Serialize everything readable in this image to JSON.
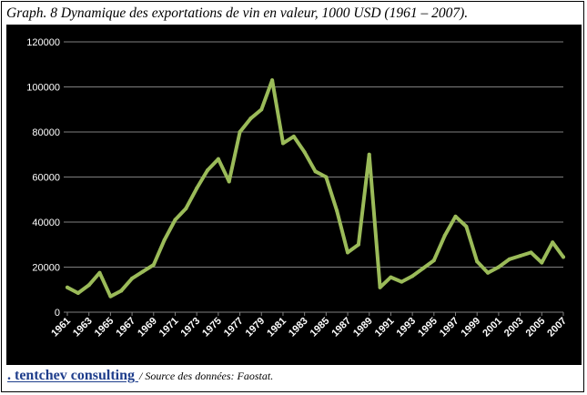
{
  "title": "Graph. 8 Dynamique des exportations de vin en valeur, 1000 USD (1961 – 2007).",
  "footer": {
    "brand": ". tentchev consulting  ",
    "source": "/ Source des données: Faostat."
  },
  "colors": {
    "background": "#000000",
    "gridline": "#7f7f7f",
    "axis_text": "#ffffff",
    "series": "#9bbb59"
  },
  "chart_data": {
    "type": "line",
    "title": "Graph. 8 Dynamique des exportations de vin en valeur, 1000 USD (1961 – 2007).",
    "xlabel": "",
    "ylabel": "",
    "ylim": [
      0,
      120000
    ],
    "yticks": [
      0,
      20000,
      40000,
      60000,
      80000,
      100000,
      120000
    ],
    "xtick_labels": [
      "1961",
      "1963",
      "1965",
      "1967",
      "1969",
      "1971",
      "1973",
      "1975",
      "1977",
      "1979",
      "1981",
      "1983",
      "1985",
      "1987",
      "1989",
      "1991",
      "1993",
      "1995",
      "1997",
      "1999",
      "2001",
      "2003",
      "2005",
      "2007"
    ],
    "grid": true,
    "legend": "none",
    "x": [
      1961,
      1962,
      1963,
      1964,
      1965,
      1966,
      1967,
      1968,
      1969,
      1970,
      1971,
      1972,
      1973,
      1974,
      1975,
      1976,
      1977,
      1978,
      1979,
      1980,
      1981,
      1982,
      1983,
      1984,
      1985,
      1986,
      1987,
      1988,
      1989,
      1990,
      1991,
      1992,
      1993,
      1994,
      1995,
      1996,
      1997,
      1998,
      1999,
      2000,
      2001,
      2002,
      2003,
      2004,
      2005,
      2006,
      2007
    ],
    "series": [
      {
        "values": [
          11000,
          8500,
          12000,
          17500,
          7000,
          9500,
          15000,
          18000,
          21000,
          32000,
          41000,
          46000,
          55000,
          63000,
          68000,
          58000,
          80000,
          86000,
          90000,
          103000,
          75000,
          78000,
          71000,
          62500,
          60000,
          45000,
          26500,
          30000,
          70000,
          11000,
          15500,
          13500,
          16000,
          19500,
          23000,
          34000,
          42500,
          38000,
          22500,
          17500,
          20000,
          23500,
          25000,
          26500,
          22000,
          31000,
          24500
        ]
      }
    ]
  }
}
